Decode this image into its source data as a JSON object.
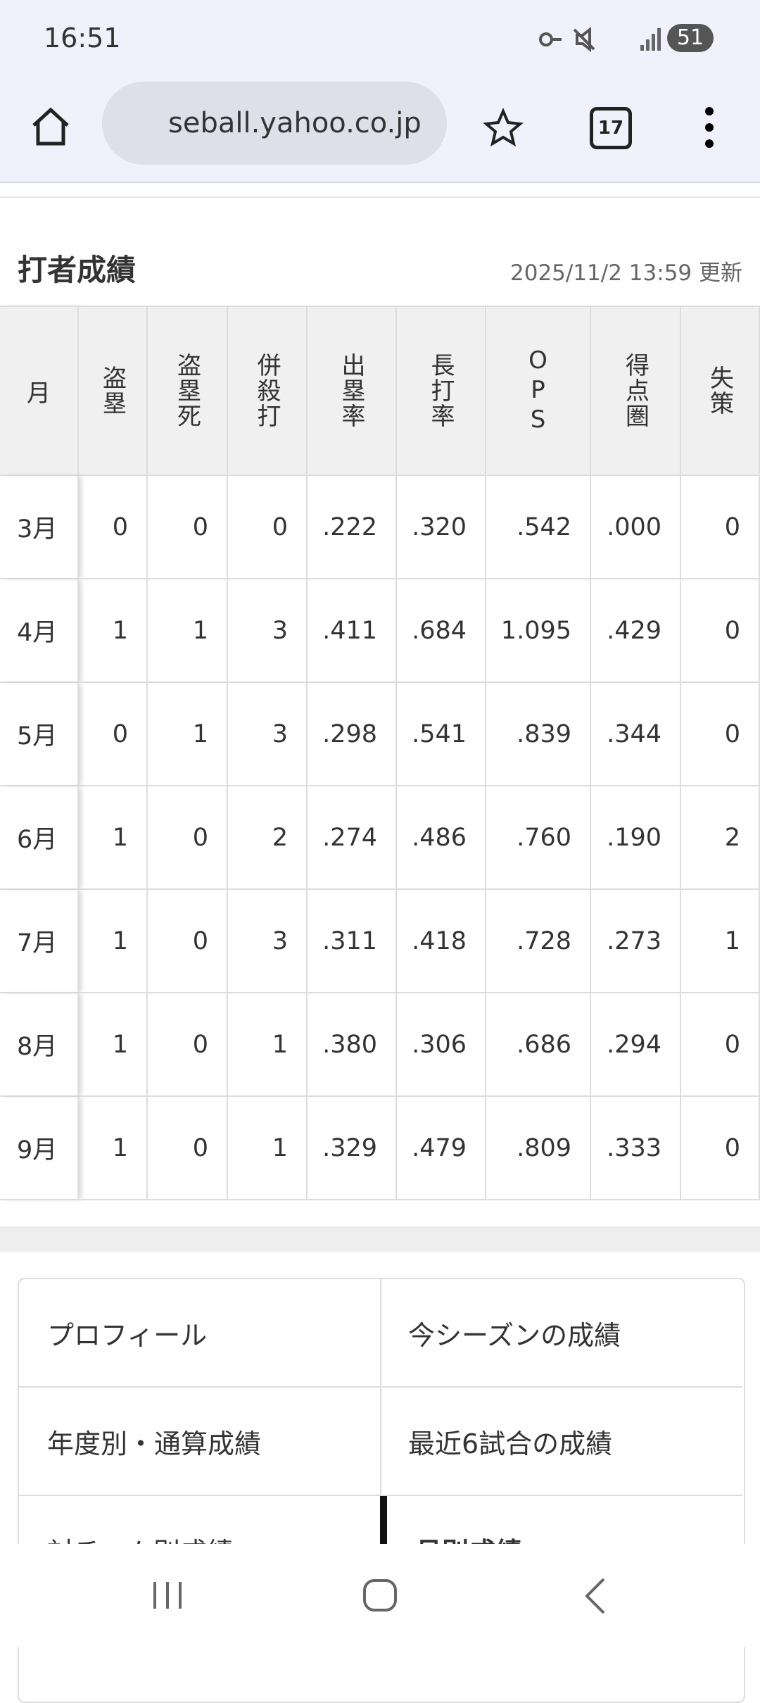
{
  "status": {
    "time": "16:51",
    "battery": "51"
  },
  "browser": {
    "url": "seball.yahoo.co.jp",
    "tabs": "17"
  },
  "section": {
    "title": "打者成績",
    "updated": "2025/11/2 13:59 更新"
  },
  "table": {
    "headers": [
      "月",
      "盗塁",
      "盗塁死",
      "併殺打",
      "出塁率",
      "長打率",
      "OPS",
      "得点圏",
      "失策"
    ],
    "rows": [
      [
        "3月",
        "0",
        "0",
        "0",
        ".222",
        ".320",
        ".542",
        ".000",
        "0"
      ],
      [
        "4月",
        "1",
        "1",
        "3",
        ".411",
        ".684",
        "1.095",
        ".429",
        "0"
      ],
      [
        "5月",
        "0",
        "1",
        "3",
        ".298",
        ".541",
        ".839",
        ".344",
        "0"
      ],
      [
        "6月",
        "1",
        "0",
        "2",
        ".274",
        ".486",
        ".760",
        ".190",
        "2"
      ],
      [
        "7月",
        "1",
        "0",
        "3",
        ".311",
        ".418",
        ".728",
        ".273",
        "1"
      ],
      [
        "8月",
        "1",
        "0",
        "1",
        ".380",
        ".306",
        ".686",
        ".294",
        "0"
      ],
      [
        "9月",
        "1",
        "0",
        "1",
        ".329",
        ".479",
        ".809",
        ".333",
        "0"
      ]
    ]
  },
  "menu": [
    "プロフィール",
    "今シーズンの成績",
    "年度別・通算成績",
    "最近6試合の成績",
    "対チーム別成績",
    "月別成績"
  ]
}
